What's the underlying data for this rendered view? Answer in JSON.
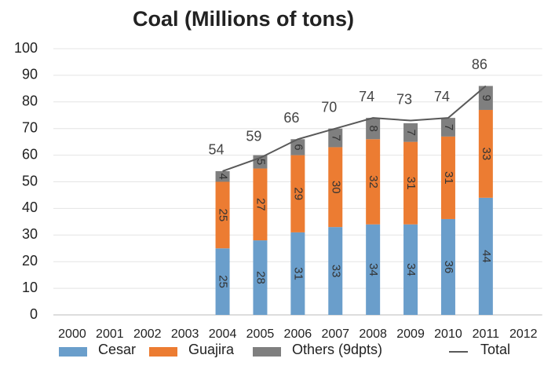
{
  "chart_data": {
    "type": "stacked_bar_line",
    "title": "Coal (Millions of tons)",
    "categories": [
      "2000",
      "2001",
      "2002",
      "2003",
      "2004",
      "2005",
      "2006",
      "2007",
      "2008",
      "2009",
      "2010",
      "2011",
      "2012"
    ],
    "series": [
      {
        "name": "Cesar",
        "color": "#6a9ecb",
        "values": [
          null,
          null,
          null,
          null,
          25,
          28,
          31,
          33,
          34,
          34,
          36,
          44,
          null
        ]
      },
      {
        "name": "Guajira",
        "color": "#ec7c32",
        "values": [
          null,
          null,
          null,
          null,
          25,
          27,
          29,
          30,
          32,
          31,
          31,
          33,
          null
        ]
      },
      {
        "name": "Others (9dpts)",
        "color": "#7f7f7f",
        "values": [
          null,
          null,
          null,
          null,
          4,
          5,
          6,
          7,
          8,
          7,
          7,
          9,
          null
        ]
      }
    ],
    "total": {
      "name": "Total",
      "color": "#595959",
      "values": [
        null,
        null,
        null,
        null,
        54,
        59,
        66,
        70,
        74,
        73,
        74,
        86,
        null
      ]
    },
    "ylim": [
      0,
      100
    ],
    "yticks": [
      0,
      10,
      20,
      30,
      40,
      50,
      60,
      70,
      80,
      90,
      100
    ],
    "grid": true
  }
}
